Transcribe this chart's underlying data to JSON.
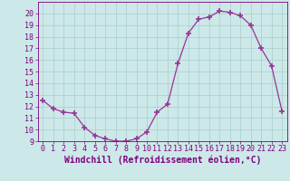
{
  "x": [
    0,
    1,
    2,
    3,
    4,
    5,
    6,
    7,
    8,
    9,
    10,
    11,
    12,
    13,
    14,
    15,
    16,
    17,
    18,
    19,
    20,
    21,
    22,
    23
  ],
  "y": [
    12.5,
    11.8,
    11.5,
    11.4,
    10.2,
    9.5,
    9.2,
    9.0,
    9.0,
    9.2,
    9.8,
    11.5,
    12.2,
    15.7,
    18.3,
    19.5,
    19.7,
    20.2,
    20.1,
    19.8,
    19.0,
    17.0,
    15.5,
    11.6
  ],
  "line_color": "#993399",
  "marker": "+",
  "marker_size": 4,
  "marker_lw": 1.2,
  "bg_color": "#cce8e8",
  "grid_color": "#aacccc",
  "xlabel": "Windchill (Refroidissement éolien,°C)",
  "ylabel": "",
  "xlim": [
    -0.5,
    23.5
  ],
  "ylim": [
    9,
    21
  ],
  "yticks": [
    9,
    10,
    11,
    12,
    13,
    14,
    15,
    16,
    17,
    18,
    19,
    20
  ],
  "xticks": [
    0,
    1,
    2,
    3,
    4,
    5,
    6,
    7,
    8,
    9,
    10,
    11,
    12,
    13,
    14,
    15,
    16,
    17,
    18,
    19,
    20,
    21,
    22,
    23
  ],
  "xlabel_fontsize": 7,
  "tick_fontsize": 6,
  "label_color": "#800080"
}
